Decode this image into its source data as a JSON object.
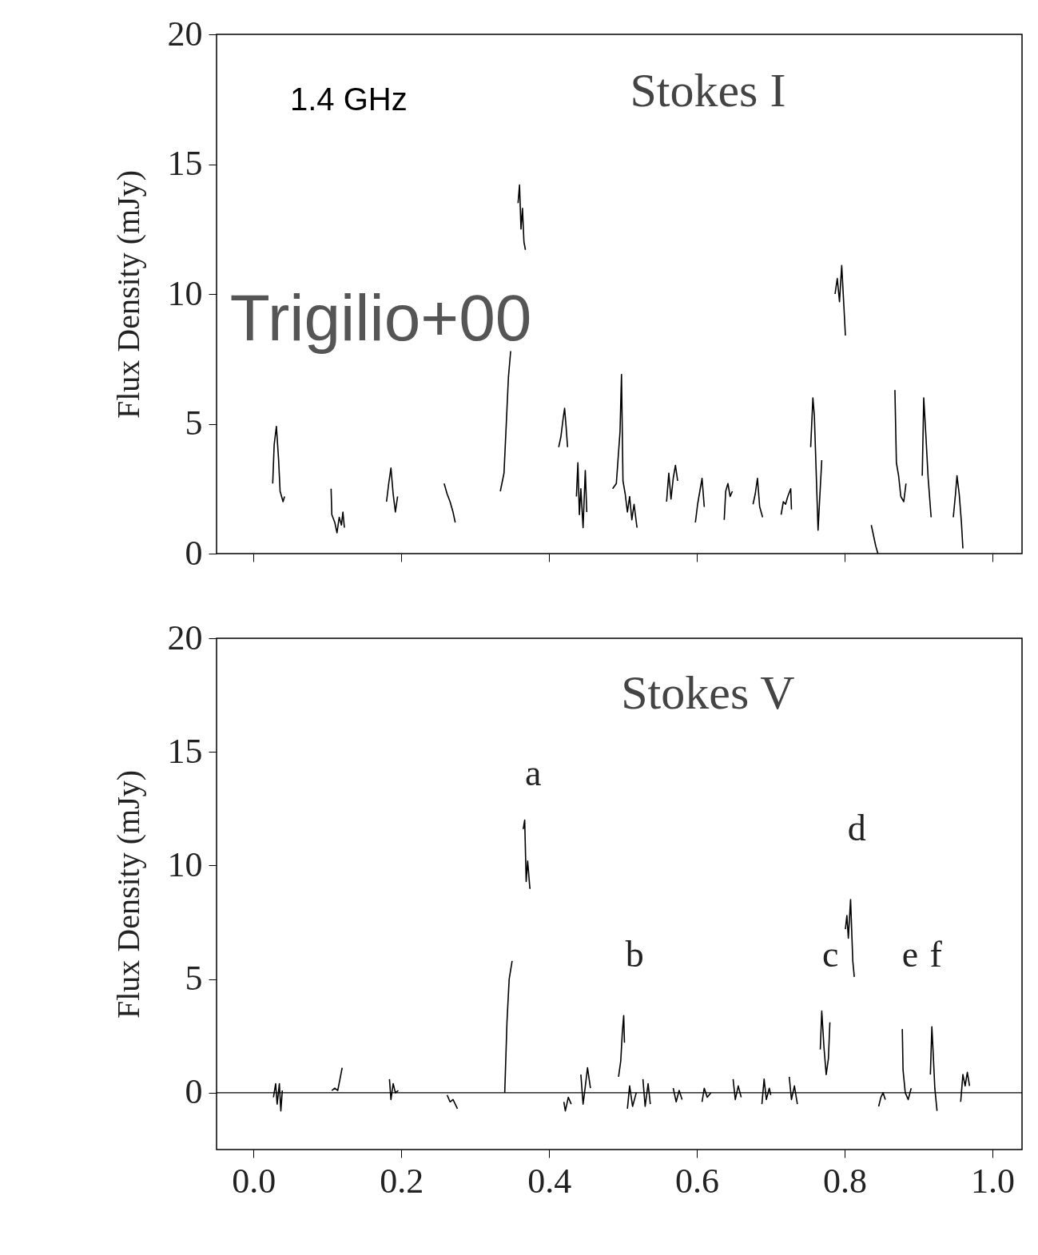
{
  "chart_data": [
    {
      "type": "line",
      "title": "Stokes I",
      "ylabel": "Flux Density (mJy)",
      "annotations": [
        "1.4 GHz",
        "Trigilio+00"
      ],
      "xlim": [
        -0.05,
        1.04
      ],
      "ylim": [
        0,
        20
      ],
      "xticks": [
        {
          "value": 0,
          "label": null
        },
        {
          "value": 0.2,
          "label": null
        },
        {
          "value": 0.4,
          "label": null
        },
        {
          "value": 0.6,
          "label": null
        },
        {
          "value": 0.8,
          "label": null
        },
        {
          "value": 1,
          "label": null
        }
      ],
      "yticks": [
        0,
        5,
        10,
        15,
        20
      ],
      "tick_labels": "y",
      "series": [
        {
          "color": "#000000",
          "x": [
            0.026,
            0.028,
            0.031,
            0.034,
            0.036,
            0.04,
            0.042,
            0.07,
            0.105,
            0.106,
            0.11,
            0.113,
            0.116,
            0.119,
            0.121,
            0.123,
            0.15,
            0.18,
            0.183,
            0.186,
            0.189,
            0.192,
            0.195,
            0.23,
            0.258,
            0.262,
            0.266,
            0.27,
            0.273,
            0.3,
            0.334,
            0.339,
            0.345,
            0.348,
            0.353,
            0.358,
            0.36,
            0.362,
            0.364,
            0.366,
            0.368,
            0.39,
            0.413,
            0.416,
            0.419,
            0.421,
            0.423,
            0.425,
            0.43,
            0.437,
            0.439,
            0.441,
            0.443,
            0.446,
            0.449,
            0.451,
            0.47,
            0.486,
            0.491,
            0.496,
            0.498,
            0.5,
            0.503,
            0.506,
            0.509,
            0.512,
            0.515,
            0.519,
            0.54,
            0.559,
            0.562,
            0.565,
            0.568,
            0.571,
            0.574,
            0.59,
            0.598,
            0.601,
            0.604,
            0.607,
            0.61,
            0.62,
            0.637,
            0.639,
            0.642,
            0.645,
            0.648,
            0.66,
            0.676,
            0.679,
            0.682,
            0.685,
            0.689,
            0.7,
            0.714,
            0.717,
            0.72,
            0.723,
            0.727,
            0.728,
            0.74,
            0.754,
            0.757,
            0.759,
            0.764,
            0.766,
            0.769,
            0.78,
            0.787,
            0.79,
            0.793,
            0.796,
            0.799,
            0.801,
            0.82,
            0.836,
            0.839,
            0.842,
            0.845,
            0.86,
            0.868,
            0.87,
            0.873,
            0.876,
            0.88,
            0.883,
            0.89,
            0.905,
            0.907,
            0.91,
            0.913,
            0.917,
            0.93,
            0.947,
            0.95,
            0.952,
            0.955,
            0.958,
            0.96
          ],
          "values": [
            2.7,
            4.2,
            4.9,
            3.6,
            2.4,
            2.0,
            2.2,
            null,
            2.5,
            1.5,
            1.2,
            0.8,
            1.4,
            1.1,
            1.6,
            1.0,
            null,
            2.0,
            2.7,
            3.3,
            2.3,
            1.6,
            2.2,
            null,
            2.7,
            2.3,
            2.0,
            1.6,
            1.2,
            null,
            2.4,
            3.1,
            6.8,
            7.8,
            null,
            13.5,
            14.2,
            12.5,
            13.3,
            12.0,
            11.7,
            null,
            4.1,
            4.5,
            5.2,
            5.6,
            4.9,
            4.1,
            null,
            2.2,
            3.5,
            1.5,
            2.5,
            1.0,
            3.2,
            1.6,
            null,
            2.5,
            2.7,
            4.7,
            6.9,
            2.8,
            2.3,
            1.6,
            2.2,
            1.3,
            1.9,
            1.0,
            null,
            2.0,
            3.1,
            2.1,
            2.9,
            3.4,
            2.8,
            null,
            1.2,
            1.9,
            2.4,
            2.9,
            1.8,
            null,
            1.3,
            2.4,
            2.7,
            2.2,
            2.4,
            null,
            1.9,
            2.3,
            2.9,
            1.8,
            1.4,
            null,
            1.5,
            2.0,
            1.9,
            2.2,
            2.5,
            1.7,
            null,
            4.1,
            6.0,
            5.3,
            0.9,
            2.0,
            3.6,
            null,
            10.0,
            10.6,
            9.7,
            11.1,
            9.5,
            8.4,
            null,
            1.1,
            0.7,
            0.3,
            0.0,
            null,
            6.3,
            3.5,
            3.0,
            2.2,
            2.0,
            2.7,
            null,
            3.0,
            6.0,
            4.5,
            2.9,
            1.4,
            null,
            1.4,
            2.3,
            3.0,
            2.3,
            1.2,
            0.2
          ]
        }
      ]
    },
    {
      "type": "line",
      "title": "Stokes V",
      "ylabel": "Flux Density (mJy)",
      "annotations": [
        "a",
        "b",
        "c",
        "d",
        "e",
        "f"
      ],
      "xlim": [
        -0.05,
        1.04
      ],
      "ylim": [
        -2.5,
        20
      ],
      "xticks": [
        {
          "value": 0,
          "label": "0.0"
        },
        {
          "value": 0.2,
          "label": "0.2"
        },
        {
          "value": 0.4,
          "label": "0.4"
        },
        {
          "value": 0.6,
          "label": "0.6"
        },
        {
          "value": 0.8,
          "label": "0.8"
        },
        {
          "value": 1,
          "label": "1.0"
        }
      ],
      "yticks": [
        0,
        5,
        10,
        15,
        20
      ],
      "ref_lines": [
        {
          "axis": "y",
          "value": 0,
          "color": "#000000"
        }
      ],
      "series": [
        {
          "color": "#000000",
          "x": [
            0.027,
            0.03,
            0.032,
            0.035,
            0.037,
            0.039,
            0.07,
            0.106,
            0.11,
            0.114,
            0.12,
            0.15,
            0.184,
            0.186,
            0.189,
            0.192,
            0.196,
            0.23,
            0.262,
            0.266,
            0.27,
            0.276,
            0.31,
            0.34,
            0.343,
            0.346,
            0.35,
            0.357,
            0.365,
            0.367,
            0.369,
            0.371,
            0.374,
            0.375,
            0.4,
            0.42,
            0.422,
            0.426,
            0.43,
            0.437,
            0.443,
            0.446,
            0.448,
            0.452,
            0.456,
            0.47,
            0.494,
            0.497,
            0.499,
            0.501,
            0.502,
            0.504,
            0.506,
            0.509,
            0.513,
            0.518,
            0.522,
            0.527,
            0.53,
            0.534,
            0.537,
            0.55,
            0.568,
            0.572,
            0.576,
            0.58,
            0.59,
            0.607,
            0.61,
            0.614,
            0.619,
            0.63,
            0.649,
            0.652,
            0.656,
            0.66,
            0.67,
            0.688,
            0.691,
            0.694,
            0.698,
            0.7,
            0.71,
            0.725,
            0.728,
            0.732,
            0.736,
            0.75,
            0.767,
            0.769,
            0.772,
            0.775,
            0.778,
            0.78,
            0.79,
            0.801,
            0.803,
            0.805,
            0.808,
            0.811,
            0.813,
            0.83,
            0.846,
            0.849,
            0.852,
            0.855,
            0.87,
            0.878,
            0.879,
            0.882,
            0.886,
            0.89,
            0.9,
            0.916,
            0.918,
            0.92,
            0.922,
            0.925,
            0.94,
            0.957,
            0.96,
            0.963,
            0.966,
            0.969
          ],
          "values": [
            -0.2,
            0.4,
            -0.5,
            0.4,
            -0.8,
            0.1,
            null,
            0.1,
            0.2,
            0.1,
            1.1,
            null,
            0.6,
            -0.3,
            0.4,
            0.0,
            0.1,
            null,
            -0.1,
            -0.4,
            -0.3,
            -0.7,
            null,
            0.0,
            3.1,
            5.0,
            5.8,
            null,
            11.6,
            12.0,
            9.3,
            10.2,
            9.0,
            9.0,
            null,
            -0.4,
            -0.8,
            -0.2,
            -0.5,
            null,
            0.8,
            -0.5,
            0.0,
            1.1,
            0.2,
            null,
            0.7,
            1.4,
            2.6,
            3.4,
            2.2,
            null,
            -0.7,
            0.3,
            -0.6,
            0.0,
            null,
            0.6,
            -0.6,
            0.4,
            -0.5,
            null,
            0.2,
            -0.4,
            0.1,
            -0.3,
            null,
            -0.4,
            0.2,
            -0.2,
            0.0,
            null,
            0.6,
            -0.3,
            0.3,
            -0.2,
            null,
            -0.5,
            0.6,
            -0.3,
            0.2,
            -0.1,
            null,
            0.7,
            -0.3,
            0.3,
            -0.5,
            null,
            1.9,
            3.6,
            2.0,
            0.8,
            1.5,
            3.1,
            null,
            7.2,
            7.8,
            6.8,
            8.5,
            5.8,
            5.1,
            null,
            -0.6,
            -0.2,
            0.0,
            -0.3,
            null,
            2.8,
            1.0,
            0.0,
            -0.3,
            0.2,
            null,
            0.8,
            2.9,
            1.6,
            0.2,
            -0.8,
            null,
            -0.4,
            0.8,
            0.3,
            0.9,
            0.3
          ]
        }
      ]
    }
  ]
}
